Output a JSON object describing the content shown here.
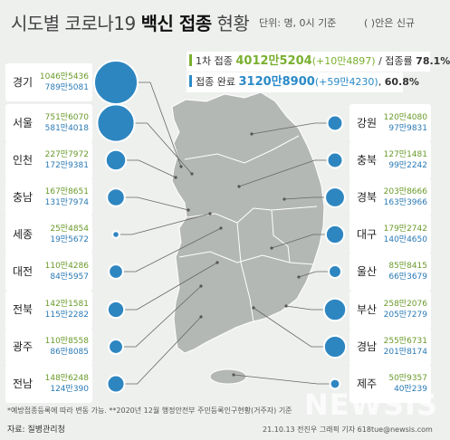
{
  "title": {
    "part1": "시도별 코로나19 ",
    "part2": "백신 접종",
    "part3": " 현황"
  },
  "unit": "단위: 명, 0시 기준",
  "paren_note": "( )안은 신규",
  "summary": {
    "first": {
      "label": "1차 접종",
      "value": "4012만5204",
      "new": "(+10만4897)",
      "rate_label": "/ 접종률",
      "rate": "78.1%"
    },
    "full": {
      "label": "접종 완료",
      "value": "3120만8900",
      "new": "(+59만4230)",
      "rate_sep": ",",
      "rate": "60.8%"
    }
  },
  "colors": {
    "first": "#7ab030",
    "full": "#2a8ac8",
    "circle": "#2e86c1",
    "map": "#b4b8b4",
    "bg": "#eef0ee"
  },
  "chart_data": {
    "type": "bubble-map",
    "series": [
      {
        "name": "1차 접종"
      },
      {
        "name": "접종 완료"
      }
    ],
    "regions": [
      {
        "name": "경기",
        "first": "1046만5436",
        "full": "789만5081",
        "full_count": 7895081
      },
      {
        "name": "서울",
        "first": "751만6070",
        "full": "581만4018",
        "full_count": 5814018
      },
      {
        "name": "인천",
        "first": "227만7972",
        "full": "172만9381",
        "full_count": 1729381
      },
      {
        "name": "충남",
        "first": "167만8651",
        "full": "131만7974",
        "full_count": 1317974
      },
      {
        "name": "세종",
        "first": "25만4854",
        "full": "19만5672",
        "full_count": 195672
      },
      {
        "name": "대전",
        "first": "110만4286",
        "full": "84만5957",
        "full_count": 845957
      },
      {
        "name": "전북",
        "first": "142만1581",
        "full": "115만2282",
        "full_count": 1152282
      },
      {
        "name": "광주",
        "first": "110만8558",
        "full": "86만8085",
        "full_count": 868085
      },
      {
        "name": "전남",
        "first": "148만6248",
        "full": "124만390",
        "full_count": 1240390
      },
      {
        "name": "강원",
        "first": "120만4080",
        "full": "97만9831",
        "full_count": 979831
      },
      {
        "name": "충북",
        "first": "127만1481",
        "full": "99만2242",
        "full_count": 992242
      },
      {
        "name": "경북",
        "first": "203만8666",
        "full": "163만3966",
        "full_count": 1633966
      },
      {
        "name": "대구",
        "first": "179만2742",
        "full": "140만4650",
        "full_count": 1404650
      },
      {
        "name": "울산",
        "first": "85만8415",
        "full": "66만3679",
        "full_count": 663679
      },
      {
        "name": "부산",
        "first": "258만2076",
        "full": "205만7279",
        "full_count": 2057279
      },
      {
        "name": "경남",
        "first": "255만6731",
        "full": "201만8174",
        "full_count": 2018174
      },
      {
        "name": "제주",
        "first": "50만9357",
        "full": "40만239",
        "full_count": 400239
      }
    ]
  },
  "footnote": "*예방접종등록에 따라 변동 가능. **2020년 12월 행정안전부 주민등록인구현황(거주자) 기준",
  "source": "자료: 질병관리청",
  "credit": "21.10.13 전진우 그래픽 기자 618tue@newsis.com",
  "brand": "NEWSIS"
}
